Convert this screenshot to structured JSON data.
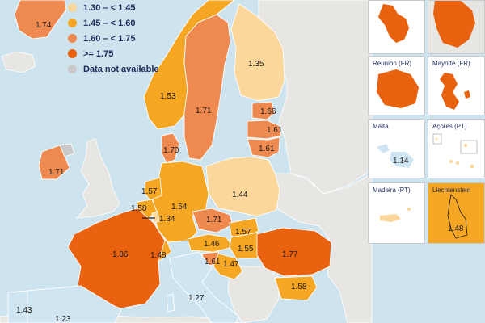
{
  "legend": {
    "items": [
      {
        "label": "1.30 – < 1.45",
        "color": "#fcd79b"
      },
      {
        "label": "1.45 – < 1.60",
        "color": "#f5a623"
      },
      {
        "label": "1.60 – < 1.75",
        "color": "#ee8a4f"
      },
      {
        "label": ">= 1.75",
        "color": "#e8620f"
      },
      {
        "label": "Data not available",
        "color": "#c9c9c9"
      }
    ]
  },
  "colors": {
    "sea": "#cde3ee",
    "non_eu": "#e8e6e2",
    "no_data": "#c9c9c9",
    "low": "#cfe5f2"
  },
  "countries": {
    "greenland": "1.74",
    "finland": "1.35",
    "sweden": "1.71",
    "norway": "1.53",
    "estonia": "1.66",
    "latvia": "1.61",
    "lithuania": "1.61",
    "denmark": "1.70",
    "ireland": "1.71",
    "poland": "1.44",
    "netherlands": "1.57",
    "belgium": "1.58",
    "luxembourg": "1.34",
    "germany": "1.54",
    "czechia": "1.71",
    "slovakia": "1.57",
    "austria": "1.46",
    "hungary": "1.55",
    "switzerland": "1.48",
    "slovenia": "1.61",
    "croatia": "1.47",
    "romania": "1.77",
    "bulgaria": "1.58",
    "france": "1.86",
    "italy": "1.27",
    "portugal": "1.43",
    "spain": "1.23"
  },
  "insets": {
    "reunion": {
      "title": "Réunion (FR)"
    },
    "mayotte": {
      "title": "Mayotte (FR)"
    },
    "malta": {
      "title": "Malta",
      "value": "1.14"
    },
    "acores": {
      "title": "Açores (PT)"
    },
    "madeira": {
      "title": "Madeira (PT)"
    },
    "liechtenstein": {
      "title": "Liechtenstein",
      "value": "1.48"
    }
  }
}
